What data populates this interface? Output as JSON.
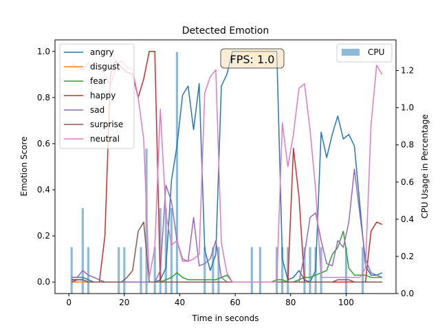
{
  "chart_data": {
    "type": "line",
    "title": "Detected Emotion",
    "xlabel": "Time in seconds",
    "ylabel": "Emotion Score",
    "y2label": "CPU Usage in Percentage",
    "xlim": [
      -5,
      118
    ],
    "ylim": [
      -0.05,
      1.05
    ],
    "y2lim": [
      0,
      1.365
    ],
    "xticks": [
      0,
      20,
      40,
      60,
      80,
      100
    ],
    "yticks": [
      0.0,
      0.2,
      0.4,
      0.6,
      0.8,
      1.0
    ],
    "y2ticks": [
      0.0,
      0.2,
      0.4,
      0.6,
      0.8,
      1.0,
      1.2
    ],
    "grid": false,
    "legend_position": "upper-left",
    "legend2_position": "upper-right",
    "annotation": "FPS: 1.0",
    "x": [
      1,
      3,
      5,
      7,
      9,
      11,
      13,
      15,
      17,
      19,
      21,
      23,
      25,
      27,
      29,
      31,
      33,
      35,
      37,
      39,
      41,
      43,
      45,
      47,
      49,
      51,
      53,
      55,
      57,
      59,
      61,
      63,
      65,
      67,
      69,
      71,
      73,
      75,
      77,
      79,
      81,
      83,
      85,
      87,
      89,
      91,
      93,
      95,
      97,
      99,
      101,
      103,
      105,
      107,
      109,
      111,
      113
    ],
    "series": [
      {
        "name": "angry",
        "color": "#1f77b4",
        "values": [
          0.02,
          0.02,
          0.02,
          0.01,
          0.0,
          0.0,
          0.0,
          0.0,
          0.0,
          0.0,
          0.0,
          0.0,
          0.0,
          0.0,
          0.0,
          0.0,
          0.01,
          0.06,
          0.44,
          0.59,
          0.81,
          0.85,
          0.66,
          0.86,
          0.14,
          0.05,
          0.12,
          0.85,
          0.9,
          1.0,
          1.0,
          1.0,
          1.0,
          1.0,
          1.0,
          1.0,
          1.0,
          1.0,
          0.1,
          0.01,
          0.02,
          0.05,
          0.01,
          0.0,
          0.05,
          0.65,
          0.54,
          0.64,
          0.72,
          0.62,
          0.64,
          0.59,
          0.33,
          0.07,
          0.03,
          0.03,
          0.04
        ]
      },
      {
        "name": "disgust",
        "color": "#ff7f0e",
        "values": [
          0.0,
          0.0,
          0.0,
          0.0,
          0.0,
          0.0,
          0.0,
          0.0,
          0.0,
          0.0,
          0.0,
          0.0,
          0.0,
          0.0,
          0.0,
          0.0,
          0.0,
          0.0,
          0.0,
          0.0,
          0.0,
          0.0,
          0.0,
          0.0,
          0.0,
          0.0,
          0.0,
          0.0,
          0.0,
          0.0,
          0.0,
          0.0,
          0.0,
          0.0,
          0.0,
          0.0,
          0.0,
          0.0,
          0.0,
          0.0,
          0.0,
          0.0,
          0.0,
          0.0,
          0.0,
          0.0,
          0.0,
          0.0,
          0.0,
          0.0,
          0.0,
          0.0,
          0.0,
          0.0,
          0.0,
          0.0,
          0.0
        ]
      },
      {
        "name": "fear",
        "color": "#2ca02c",
        "values": [
          0.01,
          0.01,
          0.01,
          0.0,
          0.0,
          0.0,
          0.0,
          0.0,
          0.0,
          0.0,
          0.0,
          0.0,
          0.0,
          0.0,
          0.0,
          0.0,
          0.0,
          0.01,
          0.02,
          0.04,
          0.02,
          0.01,
          0.01,
          0.01,
          0.01,
          0.01,
          0.01,
          0.02,
          0.03,
          0.0,
          0.0,
          0.0,
          0.0,
          0.0,
          0.0,
          0.0,
          0.0,
          0.01,
          0.01,
          0.0,
          0.0,
          0.01,
          0.02,
          0.02,
          0.03,
          0.04,
          0.05,
          0.12,
          0.15,
          0.22,
          0.06,
          0.03,
          0.03,
          0.03,
          0.02,
          0.02,
          0.02
        ]
      },
      {
        "name": "happy",
        "color": "#d62728",
        "values": [
          0.01,
          0.01,
          0.01,
          0.0,
          0.0,
          0.0,
          0.2,
          0.9,
          0.96,
          0.93,
          0.91,
          0.9,
          0.8,
          0.88,
          1.0,
          1.0,
          0.0,
          0.0,
          0.0,
          0.0,
          0.0,
          0.0,
          0.0,
          0.0,
          0.0,
          0.0,
          0.0,
          0.0,
          0.0,
          0.0,
          0.0,
          0.0,
          0.0,
          0.0,
          0.0,
          0.0,
          0.0,
          0.0,
          0.0,
          0.0,
          0.58,
          0.37,
          0.0,
          0.0,
          0.0,
          0.0,
          0.0,
          0.0,
          0.0,
          0.0,
          0.0,
          0.0,
          0.0,
          0.0,
          0.22,
          0.26,
          0.25
        ]
      },
      {
        "name": "sad",
        "color": "#9467bd",
        "values": [
          0.02,
          0.02,
          0.05,
          0.03,
          0.02,
          0.01,
          0.0,
          0.0,
          0.0,
          0.0,
          0.0,
          0.0,
          0.0,
          0.0,
          0.0,
          0.0,
          0.05,
          0.42,
          0.35,
          0.18,
          0.1,
          0.09,
          0.28,
          0.07,
          0.08,
          0.1,
          0.18,
          0.02,
          0.0,
          0.0,
          0.0,
          0.0,
          0.0,
          0.0,
          0.0,
          0.0,
          0.0,
          0.0,
          0.0,
          0.0,
          0.0,
          0.0,
          0.12,
          0.28,
          0.3,
          0.18,
          0.08,
          0.07,
          0.18,
          0.15,
          0.26,
          0.49,
          0.29,
          0.1,
          0.04,
          0.03,
          0.02
        ]
      },
      {
        "name": "surprise",
        "color": "#8c564b",
        "values": [
          0.0,
          0.01,
          0.01,
          0.0,
          0.0,
          0.0,
          0.0,
          0.0,
          0.0,
          0.0,
          0.02,
          0.05,
          0.22,
          0.26,
          0.0,
          0.0,
          0.0,
          0.0,
          0.0,
          0.0,
          0.0,
          0.0,
          0.0,
          0.0,
          0.0,
          0.0,
          0.0,
          0.0,
          0.0,
          0.0,
          0.0,
          0.0,
          0.0,
          0.0,
          0.0,
          0.0,
          0.0,
          0.0,
          0.0,
          0.0,
          0.0,
          0.0,
          0.0,
          0.0,
          0.0,
          0.0,
          0.0,
          0.0,
          0.01,
          0.01,
          0.01,
          0.0,
          0.0,
          0.0,
          0.0,
          0.0,
          0.0
        ]
      },
      {
        "name": "neutral",
        "color": "#e377c2",
        "values": [
          0.95,
          0.93,
          0.92,
          0.95,
          0.93,
          0.92,
          0.9,
          0.85,
          0.93,
          0.96,
          0.93,
          0.92,
          0.8,
          0.62,
          0.02,
          0.15,
          0.75,
          0.3,
          0.16,
          0.18,
          0.09,
          0.09,
          0.1,
          0.12,
          0.82,
          0.89,
          0.92,
          0.17,
          0.04,
          0.0,
          0.0,
          0.0,
          0.0,
          0.0,
          0.0,
          0.0,
          0.0,
          0.0,
          0.69,
          0.5,
          0.64,
          0.84,
          0.86,
          0.66,
          0.4,
          0.02,
          0.02,
          0.02,
          0.02,
          0.02,
          0.02,
          0.02,
          0.02,
          0.06,
          0.68,
          0.94,
          0.9
        ]
      },
      {
        "name": "CPU",
        "axis": "right",
        "kind": "bar",
        "color": "#7fb3d5",
        "x": [
          1,
          5,
          7,
          18,
          20,
          26,
          28,
          31,
          33,
          35,
          37,
          39,
          49,
          52,
          54,
          66,
          69,
          75,
          77,
          79,
          85,
          87,
          89,
          91,
          100,
          106
        ],
        "values": [
          0.25,
          0.46,
          0.25,
          0.25,
          0.25,
          0.25,
          0.78,
          0.25,
          0.46,
          0.46,
          0.46,
          1.3,
          0.25,
          0.25,
          0.25,
          0.25,
          0.25,
          0.25,
          0.25,
          0.25,
          0.25,
          0.25,
          0.25,
          0.25,
          0.25,
          0.25
        ]
      }
    ]
  }
}
